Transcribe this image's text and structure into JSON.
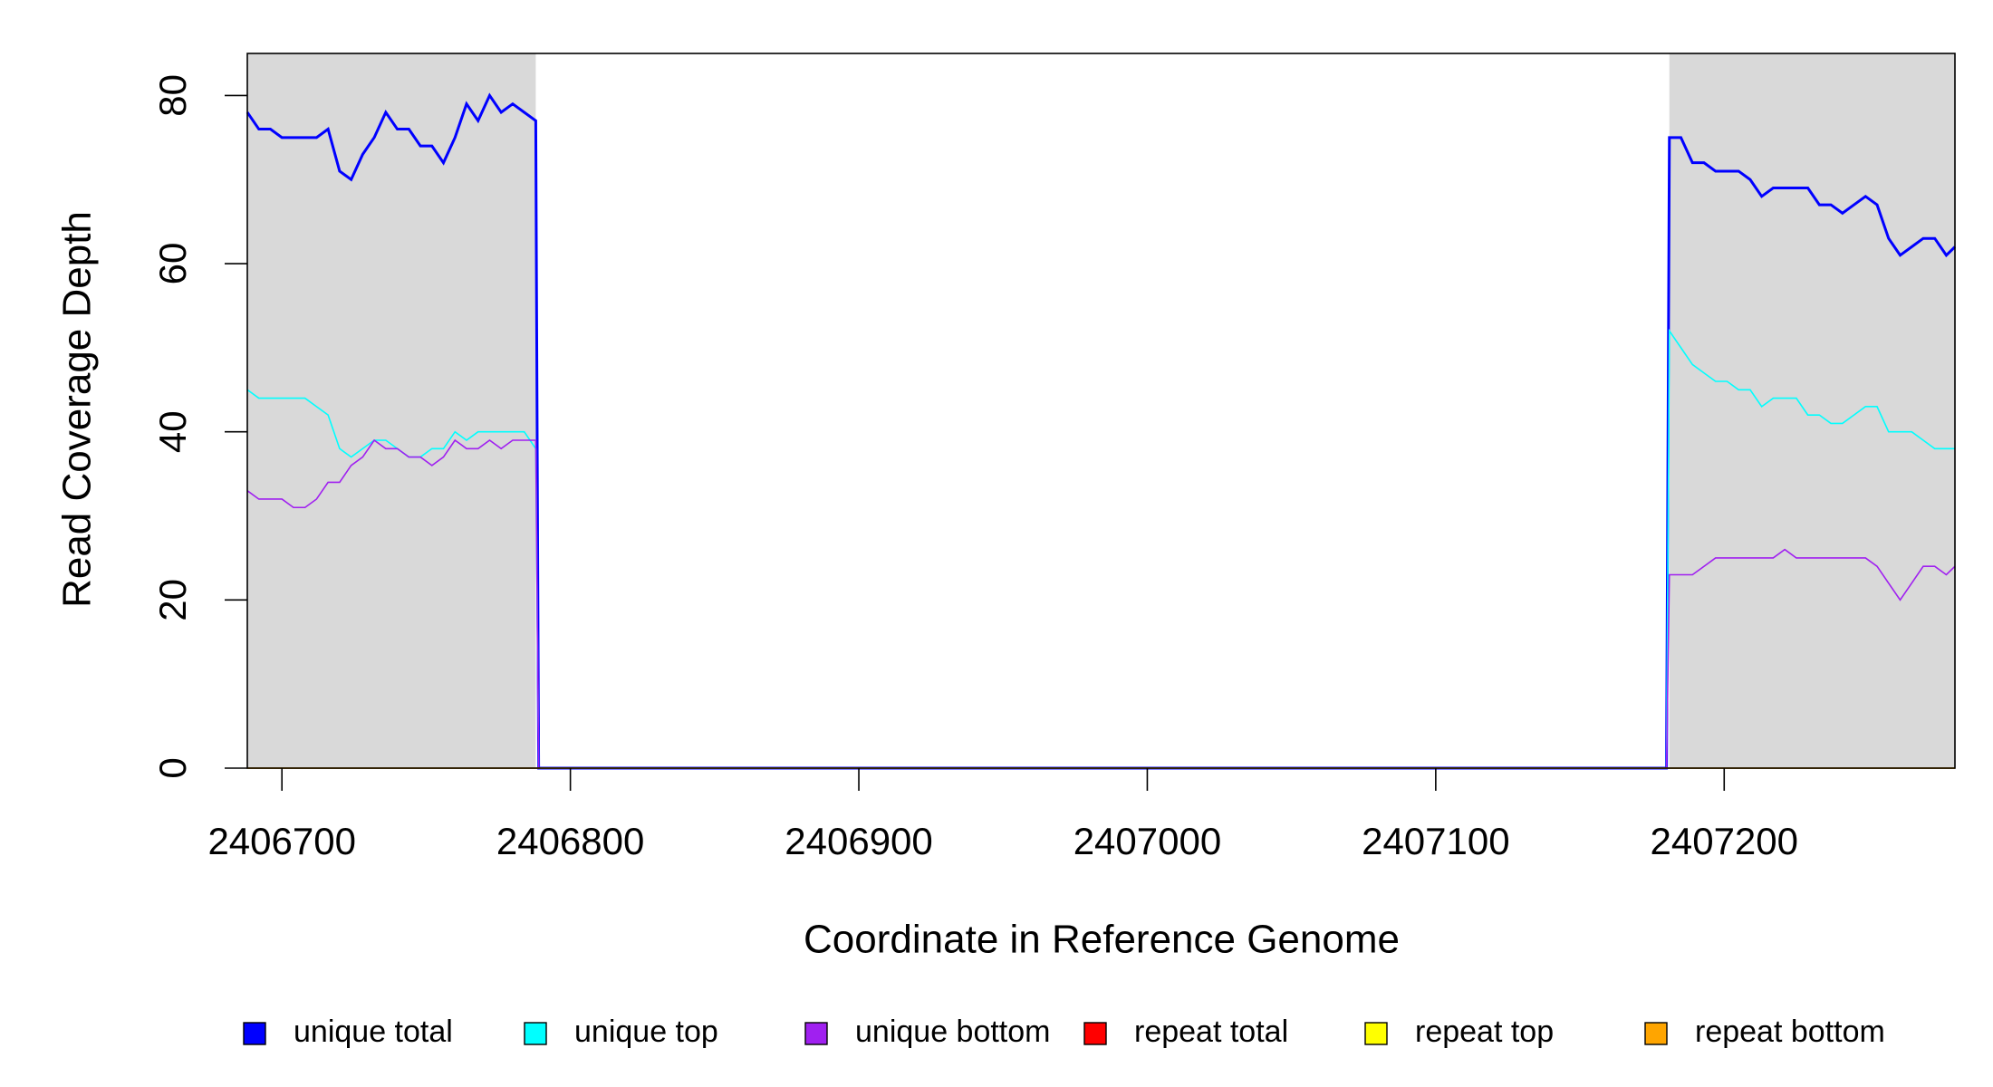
{
  "chart_data": {
    "type": "line",
    "xlabel": "Coordinate in Reference Genome",
    "ylabel": "Read Coverage Depth",
    "xlim": [
      2406688,
      2407280
    ],
    "ylim": [
      0,
      85
    ],
    "xticks": [
      2406700,
      2406800,
      2406900,
      2407000,
      2407100,
      2407200
    ],
    "yticks": [
      0,
      20,
      40,
      60,
      80
    ],
    "shaded_regions": [
      [
        2406688,
        2406788
      ],
      [
        2407181,
        2407280
      ]
    ],
    "shade_color": "#d9d9d9",
    "legend": "bottom",
    "x": [
      2406688,
      2406692,
      2406696,
      2406700,
      2406704,
      2406708,
      2406712,
      2406716,
      2406720,
      2406724,
      2406728,
      2406732,
      2406736,
      2406740,
      2406744,
      2406748,
      2406752,
      2406756,
      2406760,
      2406764,
      2406768,
      2406772,
      2406776,
      2406780,
      2406784,
      2406788,
      2406789,
      2407180,
      2407181,
      2407185,
      2407189,
      2407193,
      2407197,
      2407201,
      2407205,
      2407209,
      2407213,
      2407217,
      2407221,
      2407225,
      2407229,
      2407233,
      2407237,
      2407241,
      2407245,
      2407249,
      2407253,
      2407257,
      2407261,
      2407265,
      2407269,
      2407273,
      2407277,
      2407280
    ],
    "series": [
      {
        "name": "unique total",
        "color": "#0000ff",
        "width": 3,
        "values": [
          78,
          76,
          76,
          75,
          75,
          75,
          75,
          76,
          71,
          70,
          73,
          75,
          78,
          76,
          76,
          74,
          74,
          72,
          75,
          79,
          77,
          80,
          78,
          79,
          78,
          77,
          0,
          0,
          75,
          75,
          72,
          72,
          71,
          71,
          71,
          70,
          68,
          69,
          69,
          69,
          69,
          67,
          67,
          66,
          67,
          68,
          67,
          63,
          61,
          62,
          63,
          63,
          61,
          62
        ]
      },
      {
        "name": "unique top",
        "color": "#00ffff",
        "width": 1.6,
        "values": [
          45,
          44,
          44,
          44,
          44,
          44,
          43,
          42,
          38,
          37,
          38,
          39,
          39,
          38,
          37,
          37,
          38,
          38,
          40,
          39,
          40,
          40,
          40,
          40,
          40,
          38,
          0,
          0,
          52,
          50,
          48,
          47,
          46,
          46,
          45,
          45,
          43,
          44,
          44,
          44,
          42,
          42,
          41,
          41,
          42,
          43,
          43,
          40,
          40,
          40,
          39,
          38,
          38,
          38
        ]
      },
      {
        "name": "unique bottom",
        "color": "#a020f0",
        "width": 1.6,
        "values": [
          33,
          32,
          32,
          32,
          31,
          31,
          32,
          34,
          34,
          36,
          37,
          39,
          38,
          38,
          37,
          37,
          36,
          37,
          39,
          38,
          38,
          39,
          38,
          39,
          39,
          39,
          0,
          0,
          23,
          23,
          23,
          24,
          25,
          25,
          25,
          25,
          25,
          25,
          26,
          25,
          25,
          25,
          25,
          25,
          25,
          25,
          24,
          22,
          20,
          22,
          24,
          24,
          23,
          24
        ]
      },
      {
        "name": "repeat total",
        "color": "#ff0000",
        "width": 1.6,
        "values": [
          0,
          0,
          0,
          0,
          0,
          0,
          0,
          0,
          0,
          0,
          0,
          0,
          0,
          0,
          0,
          0,
          0,
          0,
          0,
          0,
          0,
          0,
          0,
          0,
          0,
          0,
          0,
          0,
          0,
          0,
          0,
          0,
          0,
          0,
          0,
          0,
          0,
          0,
          0,
          0,
          0,
          0,
          0,
          0,
          0,
          0,
          0,
          0,
          0,
          0,
          0,
          0,
          0,
          0
        ]
      },
      {
        "name": "repeat top",
        "color": "#ffff00",
        "width": 1.6,
        "values": [
          0,
          0,
          0,
          0,
          0,
          0,
          0,
          0,
          0,
          0,
          0,
          0,
          0,
          0,
          0,
          0,
          0,
          0,
          0,
          0,
          0,
          0,
          0,
          0,
          0,
          0,
          0,
          0,
          0,
          0,
          0,
          0,
          0,
          0,
          0,
          0,
          0,
          0,
          0,
          0,
          0,
          0,
          0,
          0,
          0,
          0,
          0,
          0,
          0,
          0,
          0,
          0,
          0,
          0
        ]
      },
      {
        "name": "repeat bottom",
        "color": "#ffa500",
        "width": 1.6,
        "values": [
          0,
          0,
          0,
          0,
          0,
          0,
          0,
          0,
          0,
          0,
          0,
          0,
          0,
          0,
          0,
          0,
          0,
          0,
          0,
          0,
          0,
          0,
          0,
          0,
          0,
          0,
          0,
          0,
          0,
          0,
          0,
          0,
          0,
          0,
          0,
          0,
          0,
          0,
          0,
          0,
          0,
          0,
          0,
          0,
          0,
          0,
          0,
          0,
          0,
          0,
          0,
          0,
          0,
          0
        ]
      }
    ]
  }
}
